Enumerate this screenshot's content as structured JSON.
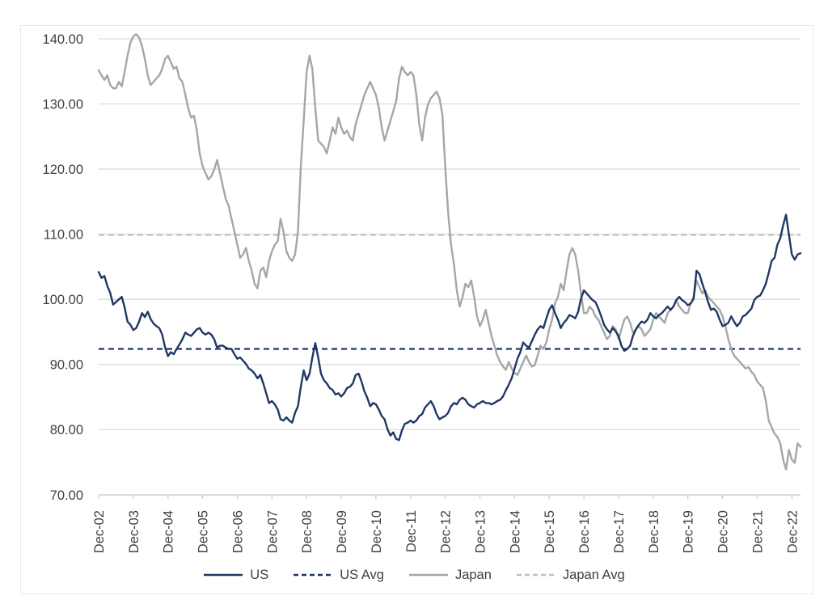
{
  "chart_data": {
    "type": "line",
    "title": "",
    "frequency": "monthly",
    "x_start": "Dec-2002",
    "x_end": "Mar-2023",
    "grid": "horizontal",
    "legend_position": "bottom",
    "x_axis": {
      "tick_labels": [
        "Dec-02",
        "Dec-03",
        "Dec-04",
        "Dec-05",
        "Dec-06",
        "Dec-07",
        "Dec-08",
        "Dec-09",
        "Dec-10",
        "Dec-11",
        "Dec-12",
        "Dec-13",
        "Dec-14",
        "Dec-15",
        "Dec-16",
        "Dec-17",
        "Dec-18",
        "Dec-19",
        "Dec-20",
        "Dec-21",
        "Dec-22"
      ]
    },
    "y_axis": {
      "min": 70,
      "max": 140,
      "tick_step": 10,
      "tick_labels": [
        "70.00",
        "80.00",
        "90.00",
        "100.00",
        "110.00",
        "120.00",
        "130.00",
        "140.00"
      ]
    },
    "series": [
      {
        "name": "US",
        "color": "#1F3864",
        "line_style": "solid",
        "kind": "data",
        "values": [
          104.2,
          103.3,
          103.6,
          102.1,
          101.0,
          99.2,
          99.6,
          100.0,
          100.4,
          98.8,
          96.6,
          96.1,
          95.3,
          95.6,
          96.6,
          97.9,
          97.3,
          98.1,
          97.0,
          96.3,
          95.9,
          95.6,
          94.6,
          92.6,
          91.3,
          91.9,
          91.6,
          92.4,
          93.1,
          93.9,
          94.9,
          94.6,
          94.4,
          94.9,
          95.4,
          95.6,
          94.9,
          94.6,
          94.9,
          94.6,
          93.9,
          92.6,
          92.9,
          92.9,
          92.6,
          92.4,
          92.4,
          91.6,
          90.9,
          91.1,
          90.6,
          90.1,
          89.4,
          89.1,
          88.6,
          87.9,
          88.4,
          87.1,
          85.6,
          84.1,
          84.4,
          83.9,
          83.1,
          81.6,
          81.4,
          81.9,
          81.4,
          81.1,
          82.6,
          83.6,
          86.6,
          89.1,
          87.6,
          88.6,
          91.1,
          93.3,
          91.1,
          88.6,
          87.6,
          87.1,
          86.4,
          86.1,
          85.4,
          85.6,
          85.1,
          85.6,
          86.4,
          86.6,
          87.1,
          88.4,
          88.6,
          87.4,
          85.9,
          84.9,
          83.6,
          84.1,
          83.9,
          83.1,
          82.1,
          81.6,
          80.1,
          79.1,
          79.6,
          78.6,
          78.4,
          79.9,
          80.9,
          81.1,
          81.4,
          81.1,
          81.4,
          82.1,
          82.4,
          83.4,
          83.9,
          84.4,
          83.6,
          82.4,
          81.6,
          81.9,
          82.1,
          82.6,
          83.6,
          84.1,
          83.9,
          84.6,
          84.9,
          84.6,
          83.9,
          83.6,
          83.4,
          83.9,
          84.1,
          84.4,
          84.1,
          84.1,
          83.9,
          84.1,
          84.4,
          84.6,
          85.1,
          86.1,
          86.9,
          87.9,
          89.4,
          90.9,
          91.9,
          93.4,
          92.9,
          92.6,
          93.6,
          94.6,
          95.4,
          95.9,
          95.6,
          97.1,
          98.4,
          99.1,
          97.9,
          96.9,
          95.6,
          96.4,
          96.9,
          97.6,
          97.4,
          97.1,
          98.1,
          100.1,
          101.4,
          100.9,
          100.4,
          99.9,
          99.6,
          98.6,
          97.4,
          96.1,
          95.4,
          94.9,
          95.6,
          95.1,
          94.4,
          92.9,
          92.1,
          92.4,
          92.9,
          94.4,
          95.4,
          96.1,
          96.6,
          96.4,
          96.9,
          97.9,
          97.4,
          97.1,
          97.6,
          97.9,
          98.4,
          98.9,
          98.4,
          98.9,
          99.9,
          100.4,
          99.9,
          99.6,
          99.1,
          99.4,
          100.1,
          104.4,
          103.9,
          102.4,
          101.1,
          99.6,
          98.4,
          98.6,
          98.1,
          96.9,
          95.9,
          96.1,
          96.4,
          97.4,
          96.6,
          95.9,
          96.4,
          97.4,
          97.6,
          98.1,
          98.6,
          99.9,
          100.4,
          100.6,
          101.4,
          102.4,
          104.1,
          105.9,
          106.4,
          108.4,
          109.4,
          111.4,
          113.0,
          109.9,
          106.9,
          106.1,
          106.9,
          107.1
        ]
      },
      {
        "name": "US Avg",
        "color": "#1F3864",
        "line_style": "dashed",
        "kind": "average",
        "value": 92.4
      },
      {
        "name": "Japan",
        "color": "#A6A6A6",
        "line_style": "solid",
        "kind": "data",
        "values": [
          135.2,
          134.4,
          133.7,
          134.4,
          132.9,
          132.4,
          132.4,
          133.4,
          132.7,
          134.9,
          137.4,
          139.4,
          140.4,
          140.7,
          140.2,
          138.9,
          136.9,
          134.4,
          132.9,
          133.4,
          133.9,
          134.4,
          135.4,
          136.9,
          137.4,
          136.4,
          135.4,
          135.7,
          133.9,
          133.4,
          131.4,
          129.4,
          127.9,
          128.2,
          125.9,
          122.4,
          120.4,
          119.4,
          118.4,
          118.9,
          119.9,
          121.4,
          119.4,
          117.4,
          115.4,
          114.4,
          112.4,
          110.4,
          108.4,
          106.4,
          106.9,
          107.9,
          105.9,
          104.4,
          102.4,
          101.7,
          104.4,
          104.9,
          103.4,
          105.9,
          107.4,
          108.4,
          108.9,
          112.4,
          110.4,
          107.4,
          106.4,
          105.9,
          106.9,
          110.4,
          120.4,
          127.4,
          134.9,
          137.4,
          135.4,
          129.4,
          124.4,
          123.9,
          123.4,
          122.4,
          124.4,
          126.4,
          125.4,
          127.9,
          126.4,
          125.4,
          125.9,
          124.9,
          124.4,
          126.9,
          128.4,
          129.9,
          131.4,
          132.4,
          133.4,
          132.4,
          131.4,
          129.4,
          126.4,
          124.4,
          125.9,
          127.4,
          128.9,
          130.4,
          133.9,
          135.7,
          134.9,
          134.4,
          134.9,
          134.4,
          131.4,
          126.9,
          124.4,
          127.9,
          129.9,
          130.9,
          131.4,
          131.9,
          130.9,
          128.4,
          120.4,
          113.4,
          108.4,
          105.4,
          101.4,
          98.9,
          100.4,
          102.4,
          101.9,
          102.9,
          100.4,
          97.4,
          95.9,
          96.9,
          98.4,
          96.4,
          94.4,
          92.9,
          91.4,
          90.4,
          89.7,
          89.2,
          90.4,
          89.4,
          88.7,
          88.4,
          89.4,
          90.4,
          91.4,
          90.4,
          89.7,
          89.9,
          91.4,
          92.9,
          92.4,
          93.4,
          95.4,
          96.9,
          99.4,
          100.4,
          102.4,
          101.4,
          104.4,
          106.9,
          107.9,
          106.9,
          104.4,
          100.9,
          97.9,
          97.9,
          98.9,
          98.4,
          97.4,
          96.9,
          95.9,
          94.9,
          93.9,
          94.4,
          95.9,
          95.4,
          93.9,
          95.4,
          96.9,
          97.4,
          96.4,
          94.9,
          95.4,
          95.9,
          95.4,
          94.4,
          94.9,
          95.4,
          96.9,
          97.9,
          97.4,
          96.9,
          96.4,
          97.9,
          98.4,
          98.9,
          99.9,
          98.9,
          98.4,
          97.9,
          97.9,
          99.4,
          100.4,
          102.9,
          101.9,
          100.9,
          101.4,
          100.4,
          99.9,
          99.4,
          98.9,
          98.4,
          97.4,
          95.9,
          93.9,
          92.4,
          91.4,
          90.9,
          90.4,
          89.9,
          89.4,
          89.6,
          88.9,
          88.4,
          87.4,
          86.9,
          86.4,
          84.4,
          81.4,
          80.4,
          79.4,
          78.9,
          77.9,
          75.4,
          73.9,
          76.9,
          75.4,
          74.9,
          77.9,
          77.4
        ]
      },
      {
        "name": "Japan Avg",
        "color": "#BFBFBF",
        "line_style": "dashed",
        "kind": "average",
        "value": 109.9
      }
    ]
  },
  "colors": {
    "background": "#FFFFFF",
    "gridline": "#D9D9D9",
    "axis": "#C6C6C6",
    "tick_text": "#404040",
    "chart_border": "#E8E8E8",
    "us": "#1F3864",
    "us_avg": "#1F3864",
    "japan": "#A6A6A6",
    "japan_avg": "#BFBFBF"
  }
}
